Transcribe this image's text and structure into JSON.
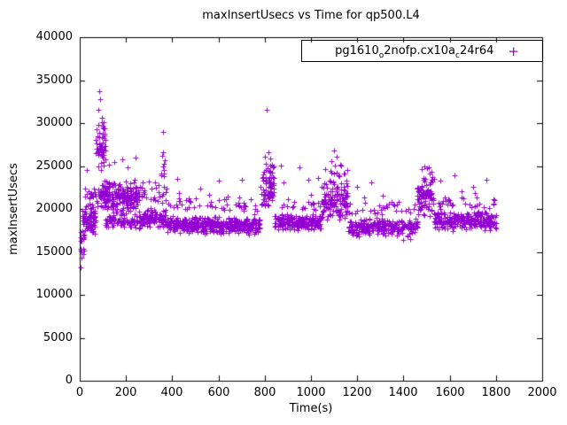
{
  "title": "maxInsertUsecs vs Time for qp500.L4",
  "legend": {
    "parts": [
      "pg1610",
      "o",
      "2nofp.cx10a",
      "c",
      "24r64"
    ],
    "full_label": "pg1610_o2nofp.cx10a_c24r64",
    "marker_glyph": "+"
  },
  "axes": {
    "x": {
      "label": "Time(s)",
      "tick_labels": [
        "0",
        "200",
        "400",
        "600",
        "800",
        "1000",
        "1200",
        "1400",
        "1600",
        "1800",
        "2000"
      ]
    },
    "y": {
      "label": "maxInsertUsecs",
      "tick_labels": [
        "0",
        "5000",
        "10000",
        "15000",
        "20000",
        "25000",
        "30000",
        "35000",
        "40000"
      ]
    }
  },
  "chart_data": {
    "type": "scatter",
    "title": "maxInsertUsecs vs Time for qp500.L4",
    "xlabel": "Time(s)",
    "ylabel": "maxInsertUsecs",
    "xlim": [
      0,
      2000
    ],
    "ylim": [
      0,
      40000
    ],
    "x_ticks": [
      0,
      200,
      400,
      600,
      800,
      1000,
      1200,
      1400,
      1600,
      1800,
      2000
    ],
    "y_ticks": [
      0,
      5000,
      10000,
      15000,
      20000,
      25000,
      30000,
      35000,
      40000
    ],
    "grid": false,
    "legend_position": "top-right-boxed",
    "series_name": "pg1610_o2nofp.cx10a_c24r64",
    "marker": "plus",
    "color": "#9400d3",
    "seed": 12345,
    "clusters": [
      [
        2,
        18,
        14,
        13500,
        17800
      ],
      [
        12,
        70,
        70,
        16800,
        20500
      ],
      [
        15,
        70,
        14,
        20200,
        22800
      ],
      [
        70,
        112,
        55,
        23500,
        31000
      ],
      [
        72,
        112,
        30,
        19500,
        23500
      ],
      [
        105,
        255,
        200,
        19200,
        23500
      ],
      [
        110,
        255,
        70,
        17800,
        19400
      ],
      [
        255,
        380,
        110,
        17500,
        20200
      ],
      [
        255,
        380,
        28,
        20200,
        23200
      ],
      [
        352,
        368,
        10,
        22500,
        27500
      ],
      [
        380,
        780,
        430,
        17000,
        19200
      ],
      [
        380,
        780,
        45,
        19200,
        21500
      ],
      [
        782,
        840,
        75,
        19500,
        25800
      ],
      [
        840,
        1045,
        190,
        17400,
        19500
      ],
      [
        840,
        1045,
        18,
        19500,
        21500
      ],
      [
        1045,
        1160,
        130,
        18500,
        23500
      ],
      [
        1045,
        1160,
        12,
        23000,
        25500
      ],
      [
        1160,
        1460,
        260,
        16700,
        19000
      ],
      [
        1160,
        1460,
        30,
        19000,
        21200
      ],
      [
        1458,
        1532,
        85,
        18500,
        24200
      ],
      [
        1532,
        1800,
        240,
        17400,
        19800
      ],
      [
        1532,
        1800,
        28,
        19800,
        21800
      ]
    ],
    "outliers": [
      [
        2,
        13200
      ],
      [
        5,
        15200
      ],
      [
        8,
        16300
      ],
      [
        30,
        24500
      ],
      [
        45,
        21800
      ],
      [
        60,
        22400
      ],
      [
        85,
        33700
      ],
      [
        88,
        32800
      ],
      [
        82,
        31500
      ],
      [
        95,
        30600
      ],
      [
        100,
        29500
      ],
      [
        78,
        28500
      ],
      [
        125,
        25200
      ],
      [
        150,
        25500
      ],
      [
        185,
        25800
      ],
      [
        240,
        26000
      ],
      [
        205,
        24800
      ],
      [
        300,
        23200
      ],
      [
        330,
        22500
      ],
      [
        360,
        29000
      ],
      [
        420,
        23500
      ],
      [
        430,
        21900
      ],
      [
        470,
        21200
      ],
      [
        520,
        22400
      ],
      [
        560,
        21600
      ],
      [
        600,
        23300
      ],
      [
        640,
        21400
      ],
      [
        690,
        21300
      ],
      [
        700,
        23400
      ],
      [
        740,
        21100
      ],
      [
        810,
        31500
      ],
      [
        815,
        26600
      ],
      [
        800,
        26100
      ],
      [
        825,
        25900
      ],
      [
        835,
        24800
      ],
      [
        870,
        25100
      ],
      [
        880,
        23100
      ],
      [
        900,
        21100
      ],
      [
        950,
        24800
      ],
      [
        990,
        23400
      ],
      [
        1000,
        21600
      ],
      [
        1030,
        23600
      ],
      [
        1100,
        26800
      ],
      [
        1110,
        26100
      ],
      [
        1090,
        25600
      ],
      [
        1130,
        25100
      ],
      [
        1140,
        24100
      ],
      [
        1060,
        24600
      ],
      [
        1200,
        22600
      ],
      [
        1230,
        21300
      ],
      [
        1260,
        23100
      ],
      [
        1310,
        21500
      ],
      [
        1350,
        20800
      ],
      [
        1400,
        16400
      ],
      [
        1430,
        16500
      ],
      [
        1480,
        24600
      ],
      [
        1490,
        24900
      ],
      [
        1500,
        24700
      ],
      [
        1510,
        24800
      ],
      [
        1520,
        24300
      ],
      [
        1560,
        23300
      ],
      [
        1620,
        23900
      ],
      [
        1650,
        22100
      ],
      [
        1700,
        22600
      ],
      [
        1710,
        21900
      ],
      [
        1760,
        23400
      ],
      [
        1790,
        21100
      ]
    ]
  }
}
